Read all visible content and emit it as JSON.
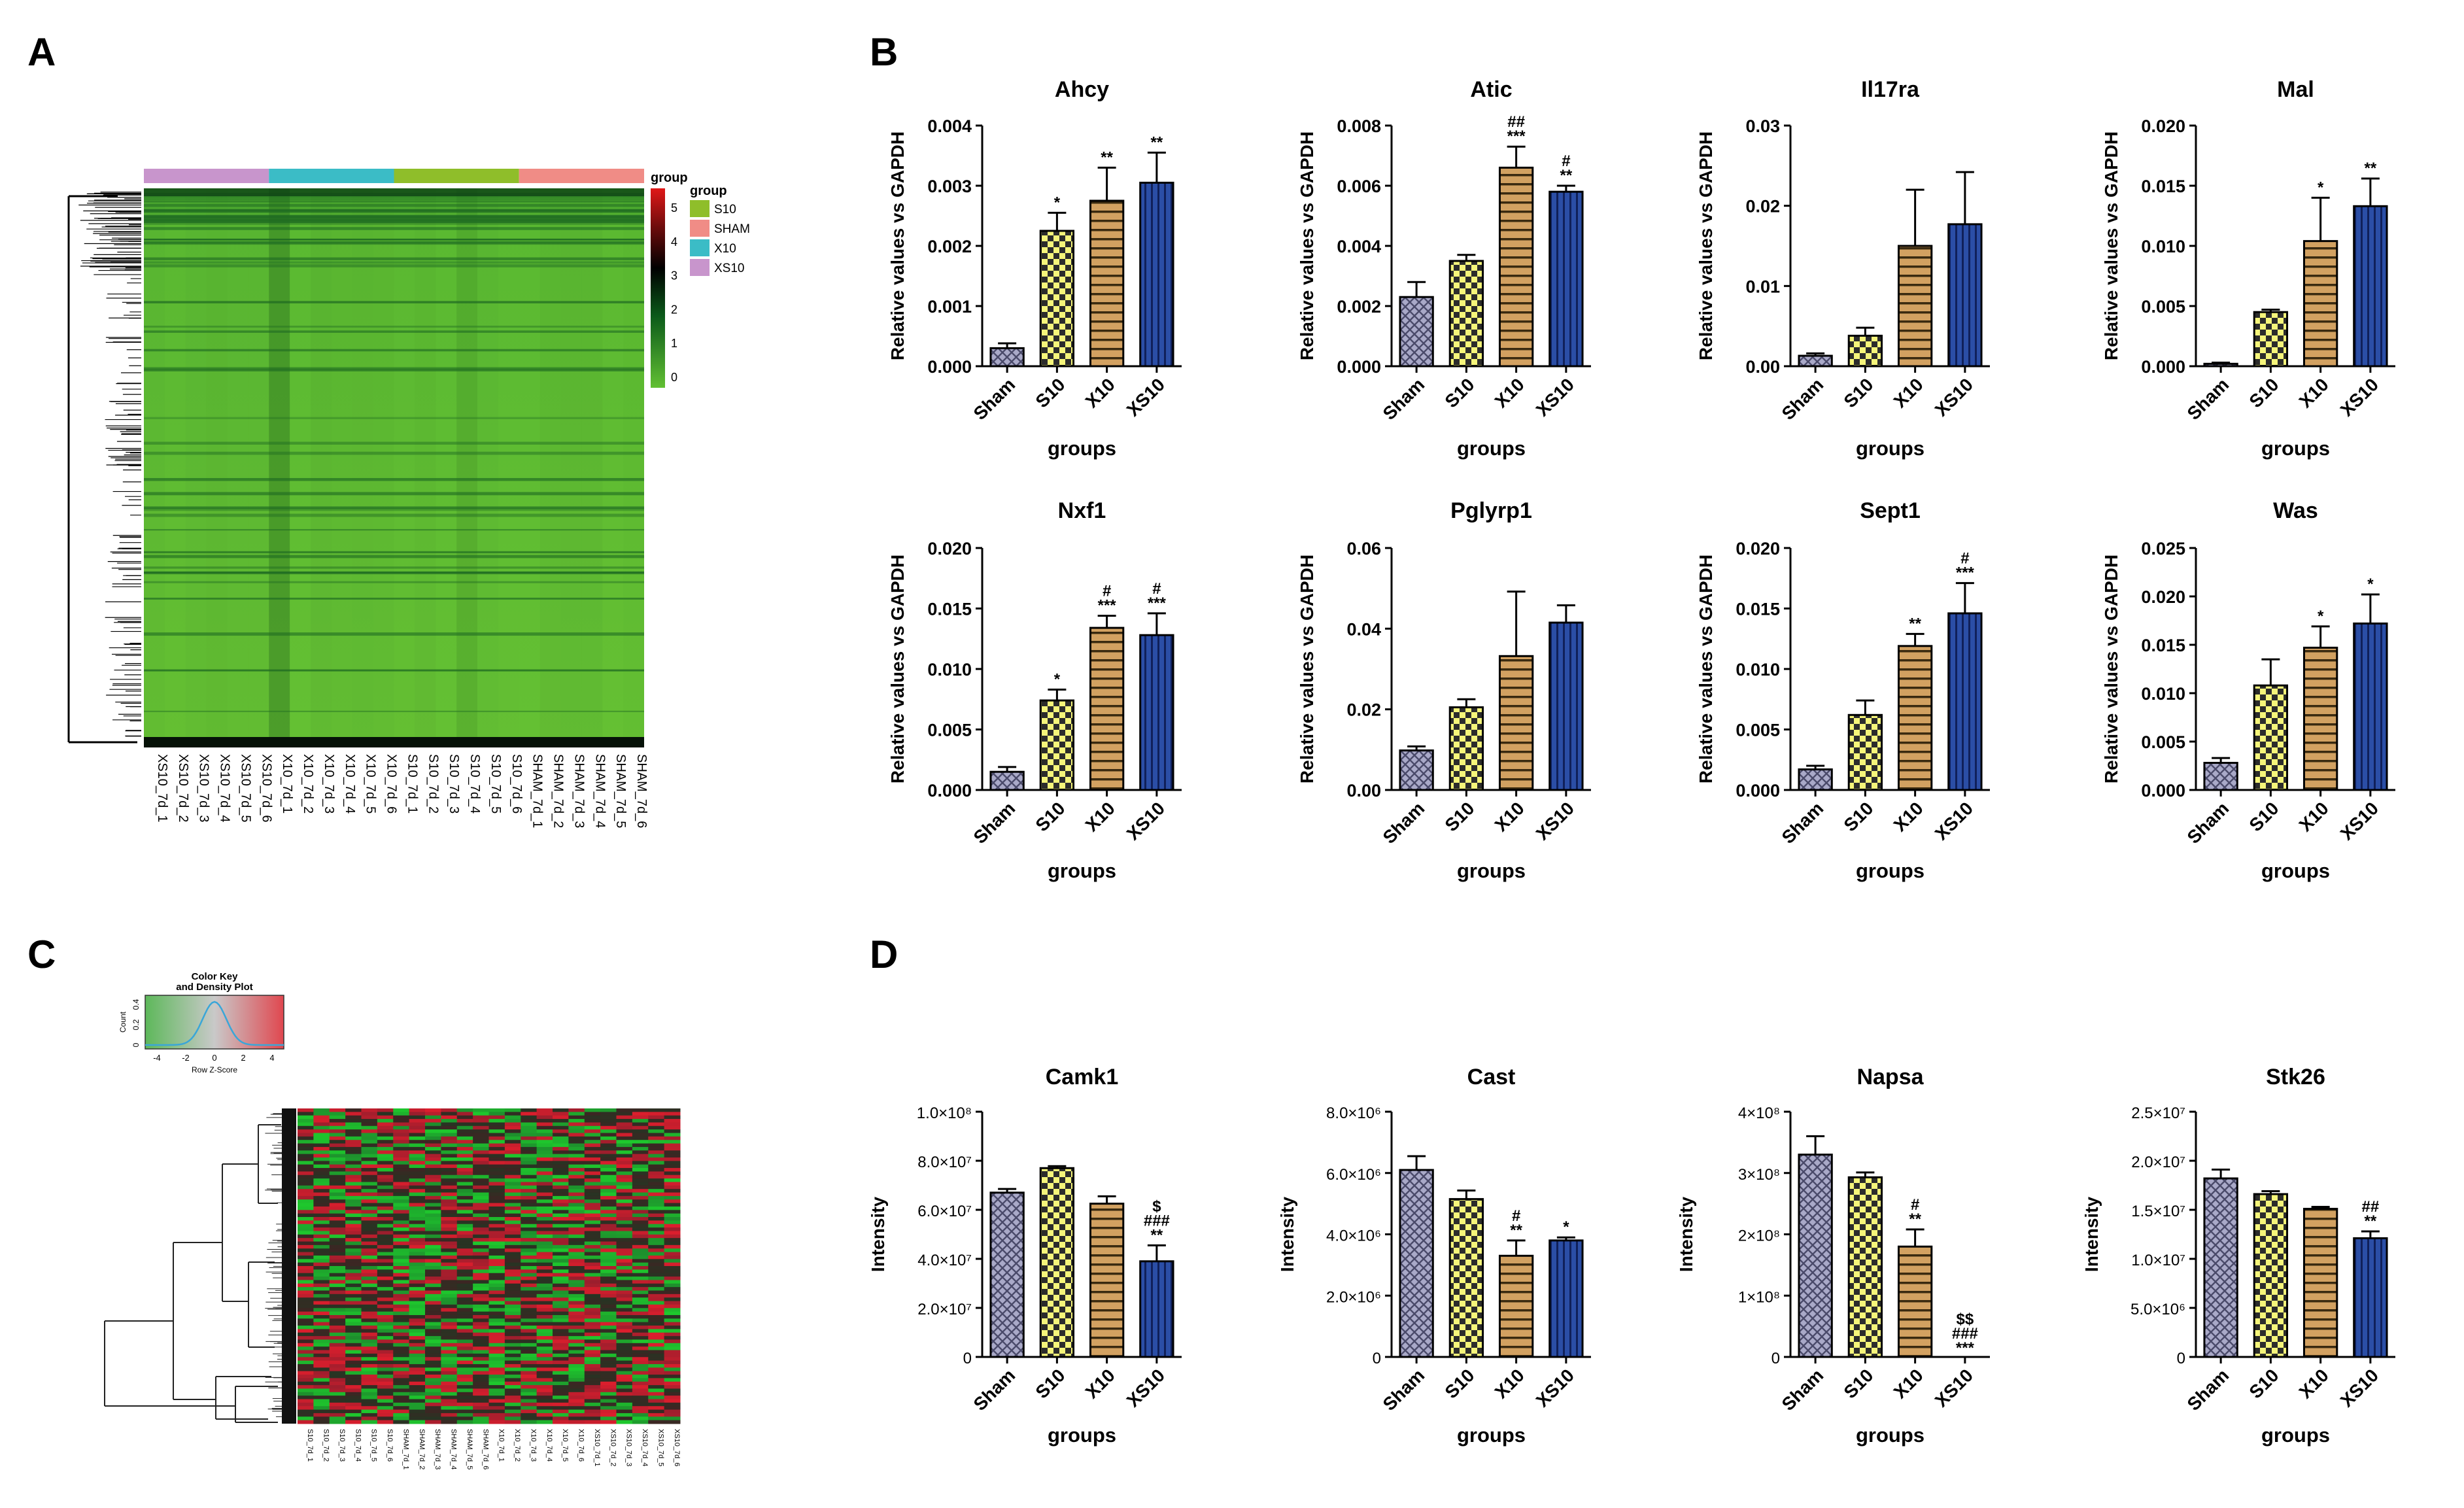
{
  "panels": {
    "A": "A",
    "B": "B",
    "C": "C",
    "D": "D"
  },
  "heatmap_a": {
    "legend_title": "group",
    "legend_items": [
      {
        "label": "S10",
        "color": "#8fbe2a"
      },
      {
        "label": "SHAM",
        "color": "#f08c86"
      },
      {
        "label": "X10",
        "color": "#3bbcc6"
      },
      {
        "label": "XS10",
        "color": "#c895cc"
      }
    ],
    "colorbar_title": "group",
    "colorbar_ticks": [
      "5",
      "4",
      "3",
      "2",
      "1",
      "0"
    ],
    "group_bar_colors": [
      "#c895cc",
      "#3bbcc6",
      "#8fbe2a",
      "#f08c86"
    ],
    "samples": [
      "XS10_7d_1",
      "XS10_7d_2",
      "XS10_7d_3",
      "XS10_7d_4",
      "XS10_7d_5",
      "XS10_7d_6",
      "X10_7d_1",
      "X10_7d_2",
      "X10_7d_3",
      "X10_7d_4",
      "X10_7d_5",
      "X10_7d_6",
      "S10_7d_1",
      "S10_7d_2",
      "S10_7d_3",
      "S10_7d_4",
      "S10_7d_5",
      "S10_7d_6",
      "SHAM_7d_1",
      "SHAM_7d_2",
      "SHAM_7d_3",
      "SHAM_7d_4",
      "SHAM_7d_5",
      "SHAM_7d_6"
    ]
  },
  "heatmap_c": {
    "key_title": "Color Key",
    "key_subtitle": "and Density Plot",
    "key_ylabel": "Count",
    "key_yticks": [
      "0",
      "0.2",
      "0.4"
    ],
    "key_xlabel": "Row Z-Score",
    "key_xticks": [
      "-4",
      "-2",
      "0",
      "2",
      "4"
    ],
    "samples": [
      "S10_7d_1",
      "S10_7d_2",
      "S10_7d_3",
      "S10_7d_4",
      "S10_7d_5",
      "S10_7d_6",
      "SHAM_7d_1",
      "SHAM_7d_2",
      "SHAM_7d_3",
      "SHAM_7d_4",
      "SHAM_7d_5",
      "SHAM_7d_6",
      "X10_7d_1",
      "X10_7d_2",
      "X10_7d_3",
      "X10_7d_4",
      "X10_7d_5",
      "X10_7d_6",
      "XS10_7d_1",
      "XS10_7d_2",
      "XS10_7d_3",
      "XS10_7d_4",
      "XS10_7d_5",
      "XS10_7d_6"
    ]
  },
  "chart_data": [
    {
      "type": "bar",
      "panel": "B",
      "title": "Ahcy",
      "ylabel": "Relative values vs GAPDH",
      "xlabel": "groups",
      "categories": [
        "Sham",
        "S10",
        "X10",
        "XS10"
      ],
      "values": [
        0.0003,
        0.00225,
        0.00275,
        0.00305
      ],
      "errors": [
        8e-05,
        0.0003,
        0.00055,
        0.0005
      ],
      "ylim": [
        0,
        0.004
      ],
      "yticks": [
        "0.000",
        "0.001",
        "0.002",
        "0.003",
        "0.004"
      ],
      "yticks_num": [
        0,
        0.001,
        0.002,
        0.003,
        0.004
      ],
      "annotations": [
        [],
        [
          "*"
        ],
        [
          "**"
        ],
        [
          "**"
        ]
      ]
    },
    {
      "type": "bar",
      "panel": "B",
      "title": "Atic",
      "ylabel": "Relative values vs GAPDH",
      "xlabel": "groups",
      "categories": [
        "Sham",
        "S10",
        "X10",
        "XS10"
      ],
      "values": [
        0.0023,
        0.0035,
        0.0066,
        0.0058
      ],
      "errors": [
        0.0005,
        0.0002,
        0.0007,
        0.0002
      ],
      "ylim": [
        0,
        0.008
      ],
      "yticks": [
        "0.000",
        "0.002",
        "0.004",
        "0.006",
        "0.008"
      ],
      "yticks_num": [
        0,
        0.002,
        0.004,
        0.006,
        0.008
      ],
      "annotations": [
        [],
        [],
        [
          "##",
          "***"
        ],
        [
          "#",
          "**"
        ]
      ]
    },
    {
      "type": "bar",
      "panel": "B",
      "title": "Il17ra",
      "ylabel": "Relative values vs GAPDH",
      "xlabel": "groups",
      "categories": [
        "Sham",
        "S10",
        "X10",
        "XS10"
      ],
      "values": [
        0.0013,
        0.0038,
        0.015,
        0.0177
      ],
      "errors": [
        0.0003,
        0.001,
        0.007,
        0.0065
      ],
      "ylim": [
        0,
        0.03
      ],
      "yticks": [
        "0.00",
        "0.01",
        "0.02",
        "0.03"
      ],
      "yticks_num": [
        0,
        0.01,
        0.02,
        0.03
      ],
      "annotations": [
        [],
        [],
        [],
        []
      ]
    },
    {
      "type": "bar",
      "panel": "B",
      "title": "Mal",
      "ylabel": "Relative values vs GAPDH",
      "xlabel": "groups",
      "categories": [
        "Sham",
        "S10",
        "X10",
        "XS10"
      ],
      "values": [
        0.0002,
        0.0045,
        0.0104,
        0.0133
      ],
      "errors": [
        0.0001,
        0.0002,
        0.0036,
        0.0023
      ],
      "ylim": [
        0,
        0.02
      ],
      "yticks": [
        "0.000",
        "0.005",
        "0.010",
        "0.015",
        "0.020"
      ],
      "yticks_num": [
        0,
        0.005,
        0.01,
        0.015,
        0.02
      ],
      "annotations": [
        [],
        [],
        [
          "*"
        ],
        [
          "**"
        ]
      ]
    },
    {
      "type": "bar",
      "panel": "B",
      "title": "Nxf1",
      "ylabel": "Relative values vs GAPDH",
      "xlabel": "groups",
      "categories": [
        "Sham",
        "S10",
        "X10",
        "XS10"
      ],
      "values": [
        0.0015,
        0.0074,
        0.0134,
        0.0128
      ],
      "errors": [
        0.0004,
        0.0009,
        0.001,
        0.0018
      ],
      "ylim": [
        0,
        0.02
      ],
      "yticks": [
        "0.000",
        "0.005",
        "0.010",
        "0.015",
        "0.020"
      ],
      "yticks_num": [
        0,
        0.005,
        0.01,
        0.015,
        0.02
      ],
      "annotations": [
        [],
        [
          "*"
        ],
        [
          "#",
          "***"
        ],
        [
          "#",
          "***"
        ]
      ]
    },
    {
      "type": "bar",
      "panel": "B",
      "title": "Pglyrp1",
      "ylabel": "Relative values vs GAPDH",
      "xlabel": "groups",
      "categories": [
        "Sham",
        "S10",
        "X10",
        "XS10"
      ],
      "values": [
        0.0098,
        0.0205,
        0.0332,
        0.0415
      ],
      "errors": [
        0.001,
        0.002,
        0.016,
        0.0043
      ],
      "ylim": [
        0,
        0.06
      ],
      "yticks": [
        "0.00",
        "0.02",
        "0.04",
        "0.06"
      ],
      "yticks_num": [
        0,
        0.02,
        0.04,
        0.06
      ],
      "annotations": [
        [],
        [],
        [],
        []
      ]
    },
    {
      "type": "bar",
      "panel": "B",
      "title": "Sept1",
      "ylabel": "Relative values vs GAPDH",
      "xlabel": "groups",
      "categories": [
        "Sham",
        "S10",
        "X10",
        "XS10"
      ],
      "values": [
        0.0017,
        0.0062,
        0.0119,
        0.0146
      ],
      "errors": [
        0.0003,
        0.0012,
        0.001,
        0.0025
      ],
      "ylim": [
        0,
        0.02
      ],
      "yticks": [
        "0.000",
        "0.005",
        "0.010",
        "0.015",
        "0.020"
      ],
      "yticks_num": [
        0,
        0.005,
        0.01,
        0.015,
        0.02
      ],
      "annotations": [
        [],
        [],
        [
          "**"
        ],
        [
          "#",
          "***"
        ]
      ]
    },
    {
      "type": "bar",
      "panel": "B",
      "title": "Was",
      "ylabel": "Relative values vs GAPDH",
      "xlabel": "groups",
      "categories": [
        "Sham",
        "S10",
        "X10",
        "XS10"
      ],
      "values": [
        0.0028,
        0.0108,
        0.0147,
        0.0172
      ],
      "errors": [
        0.0005,
        0.0027,
        0.0022,
        0.003
      ],
      "ylim": [
        0,
        0.025
      ],
      "yticks": [
        "0.000",
        "0.005",
        "0.010",
        "0.015",
        "0.020",
        "0.025"
      ],
      "yticks_num": [
        0,
        0.005,
        0.01,
        0.015,
        0.02,
        0.025
      ],
      "annotations": [
        [],
        [],
        [
          "*"
        ],
        [
          "*"
        ]
      ]
    },
    {
      "type": "bar",
      "panel": "D",
      "title": "Camk1",
      "ylabel": "Intensity",
      "xlabel": "groups",
      "categories": [
        "Sham",
        "S10",
        "X10",
        "XS10"
      ],
      "values": [
        67000000,
        77000000,
        62500000,
        39000000
      ],
      "errors": [
        1500000,
        800000,
        3000000,
        6500000
      ],
      "ylim": [
        0,
        100000000
      ],
      "yticks": [
        "0",
        "2.0×10⁷",
        "4.0×10⁷",
        "6.0×10⁷",
        "8.0×10⁷",
        "1.0×10⁸"
      ],
      "yticks_num": [
        0,
        20000000,
        40000000,
        60000000,
        80000000,
        100000000
      ],
      "annotations": [
        [],
        [],
        [],
        [
          "$",
          "###",
          "**"
        ]
      ]
    },
    {
      "type": "bar",
      "panel": "D",
      "title": "Cast",
      "ylabel": "Intensity",
      "xlabel": "groups",
      "categories": [
        "Sham",
        "S10",
        "X10",
        "XS10"
      ],
      "values": [
        6100000,
        5150000,
        3300000,
        3800000
      ],
      "errors": [
        450000,
        280000,
        500000,
        100000
      ],
      "ylim": [
        0,
        8000000
      ],
      "yticks": [
        "0",
        "2.0×10⁶",
        "4.0×10⁶",
        "6.0×10⁶",
        "8.0×10⁶"
      ],
      "yticks_num": [
        0,
        2000000,
        4000000,
        6000000,
        8000000
      ],
      "annotations": [
        [],
        [],
        [
          "#",
          "**"
        ],
        [
          "*"
        ]
      ]
    },
    {
      "type": "bar",
      "panel": "D",
      "title": "Napsa",
      "ylabel": "Intensity",
      "xlabel": "groups",
      "categories": [
        "Sham",
        "S10",
        "X10",
        "XS10"
      ],
      "values": [
        330000000,
        293000000,
        180000000,
        0
      ],
      "errors": [
        30000000,
        8000000,
        28000000,
        0
      ],
      "ylim": [
        0,
        400000000
      ],
      "yticks": [
        "0",
        "1×10⁸",
        "2×10⁸",
        "3×10⁸",
        "4×10⁸"
      ],
      "yticks_num": [
        0,
        100000000,
        200000000,
        300000000,
        400000000
      ],
      "annotations": [
        [],
        [],
        [
          "#",
          "**"
        ],
        [
          "$$",
          "###",
          "***"
        ]
      ]
    },
    {
      "type": "bar",
      "panel": "D",
      "title": "Stk26",
      "ylabel": "Intensity",
      "xlabel": "groups",
      "categories": [
        "Sham",
        "S10",
        "X10",
        "XS10"
      ],
      "values": [
        18200000,
        16600000,
        15100000,
        12100000
      ],
      "errors": [
        900000,
        300000,
        200000,
        700000
      ],
      "ylim": [
        0,
        25000000
      ],
      "yticks": [
        "0",
        "5.0×10⁶",
        "1.0×10⁷",
        "1.5×10⁷",
        "2.0×10⁷",
        "2.5×10⁷"
      ],
      "yticks_num": [
        0,
        5000000,
        10000000,
        15000000,
        20000000,
        25000000
      ],
      "annotations": [
        [],
        [],
        [],
        [
          "##",
          "**"
        ]
      ]
    }
  ]
}
